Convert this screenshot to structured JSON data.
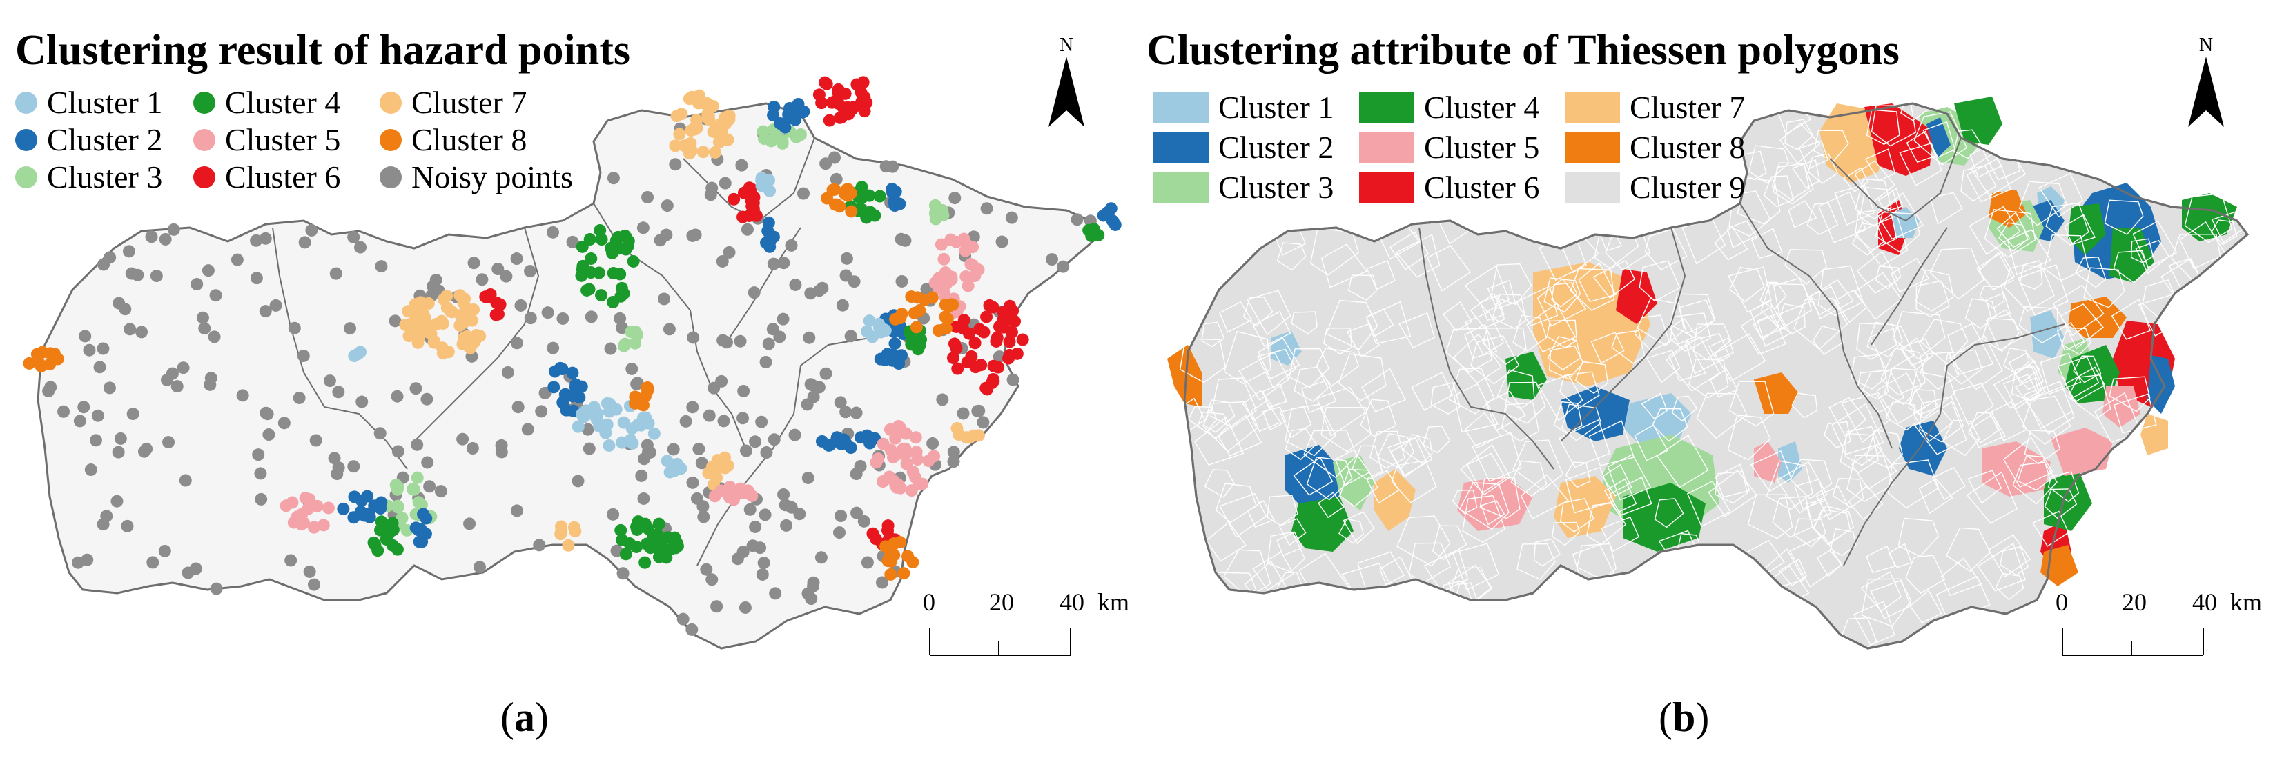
{
  "panels": [
    {
      "id": "a",
      "title": "Clustering result of hazard points",
      "panel_label_open": "(",
      "panel_label_letter": "a",
      "panel_label_close": ")",
      "legend": [
        {
          "label": "Cluster 1",
          "color": "#9ecae1"
        },
        {
          "label": "Cluster 2",
          "color": "#1f6eb3"
        },
        {
          "label": "Cluster 3",
          "color": "#a1d99b"
        },
        {
          "label": "Cluster 4",
          "color": "#1a9a2a"
        },
        {
          "label": "Cluster 5",
          "color": "#f4a3a8"
        },
        {
          "label": "Cluster 6",
          "color": "#e8171f"
        },
        {
          "label": "Cluster 7",
          "color": "#f9c27b"
        },
        {
          "label": "Cluster 8",
          "color": "#f07d12"
        },
        {
          "label": "Noisy points",
          "color": "#8c8c8c"
        }
      ]
    },
    {
      "id": "b",
      "title": "Clustering attribute of Thiessen polygons",
      "panel_label_open": "(",
      "panel_label_letter": "b",
      "panel_label_close": ")",
      "legend": [
        {
          "label": "Cluster 1",
          "color": "#9ecae1"
        },
        {
          "label": "Cluster 2",
          "color": "#1f6eb3"
        },
        {
          "label": "Cluster 3",
          "color": "#a1d99b"
        },
        {
          "label": "Cluster 4",
          "color": "#1a9a2a"
        },
        {
          "label": "Cluster 5",
          "color": "#f4a3a8"
        },
        {
          "label": "Cluster 6",
          "color": "#e8171f"
        },
        {
          "label": "Cluster 7",
          "color": "#f9c27b"
        },
        {
          "label": "Cluster 8",
          "color": "#f07d12"
        },
        {
          "label": "Cluster 9",
          "color": "#e0e0e0"
        }
      ]
    }
  ],
  "north_arrow": {
    "letter": "N"
  },
  "scale_bar": {
    "ticks": [
      "0",
      "20",
      "40"
    ],
    "unit": "km"
  },
  "style": {
    "study_area_fill": "#f5f5f5",
    "boundary_color": "#6e6e6e",
    "thiessen_line_color": "#ffffff"
  }
}
